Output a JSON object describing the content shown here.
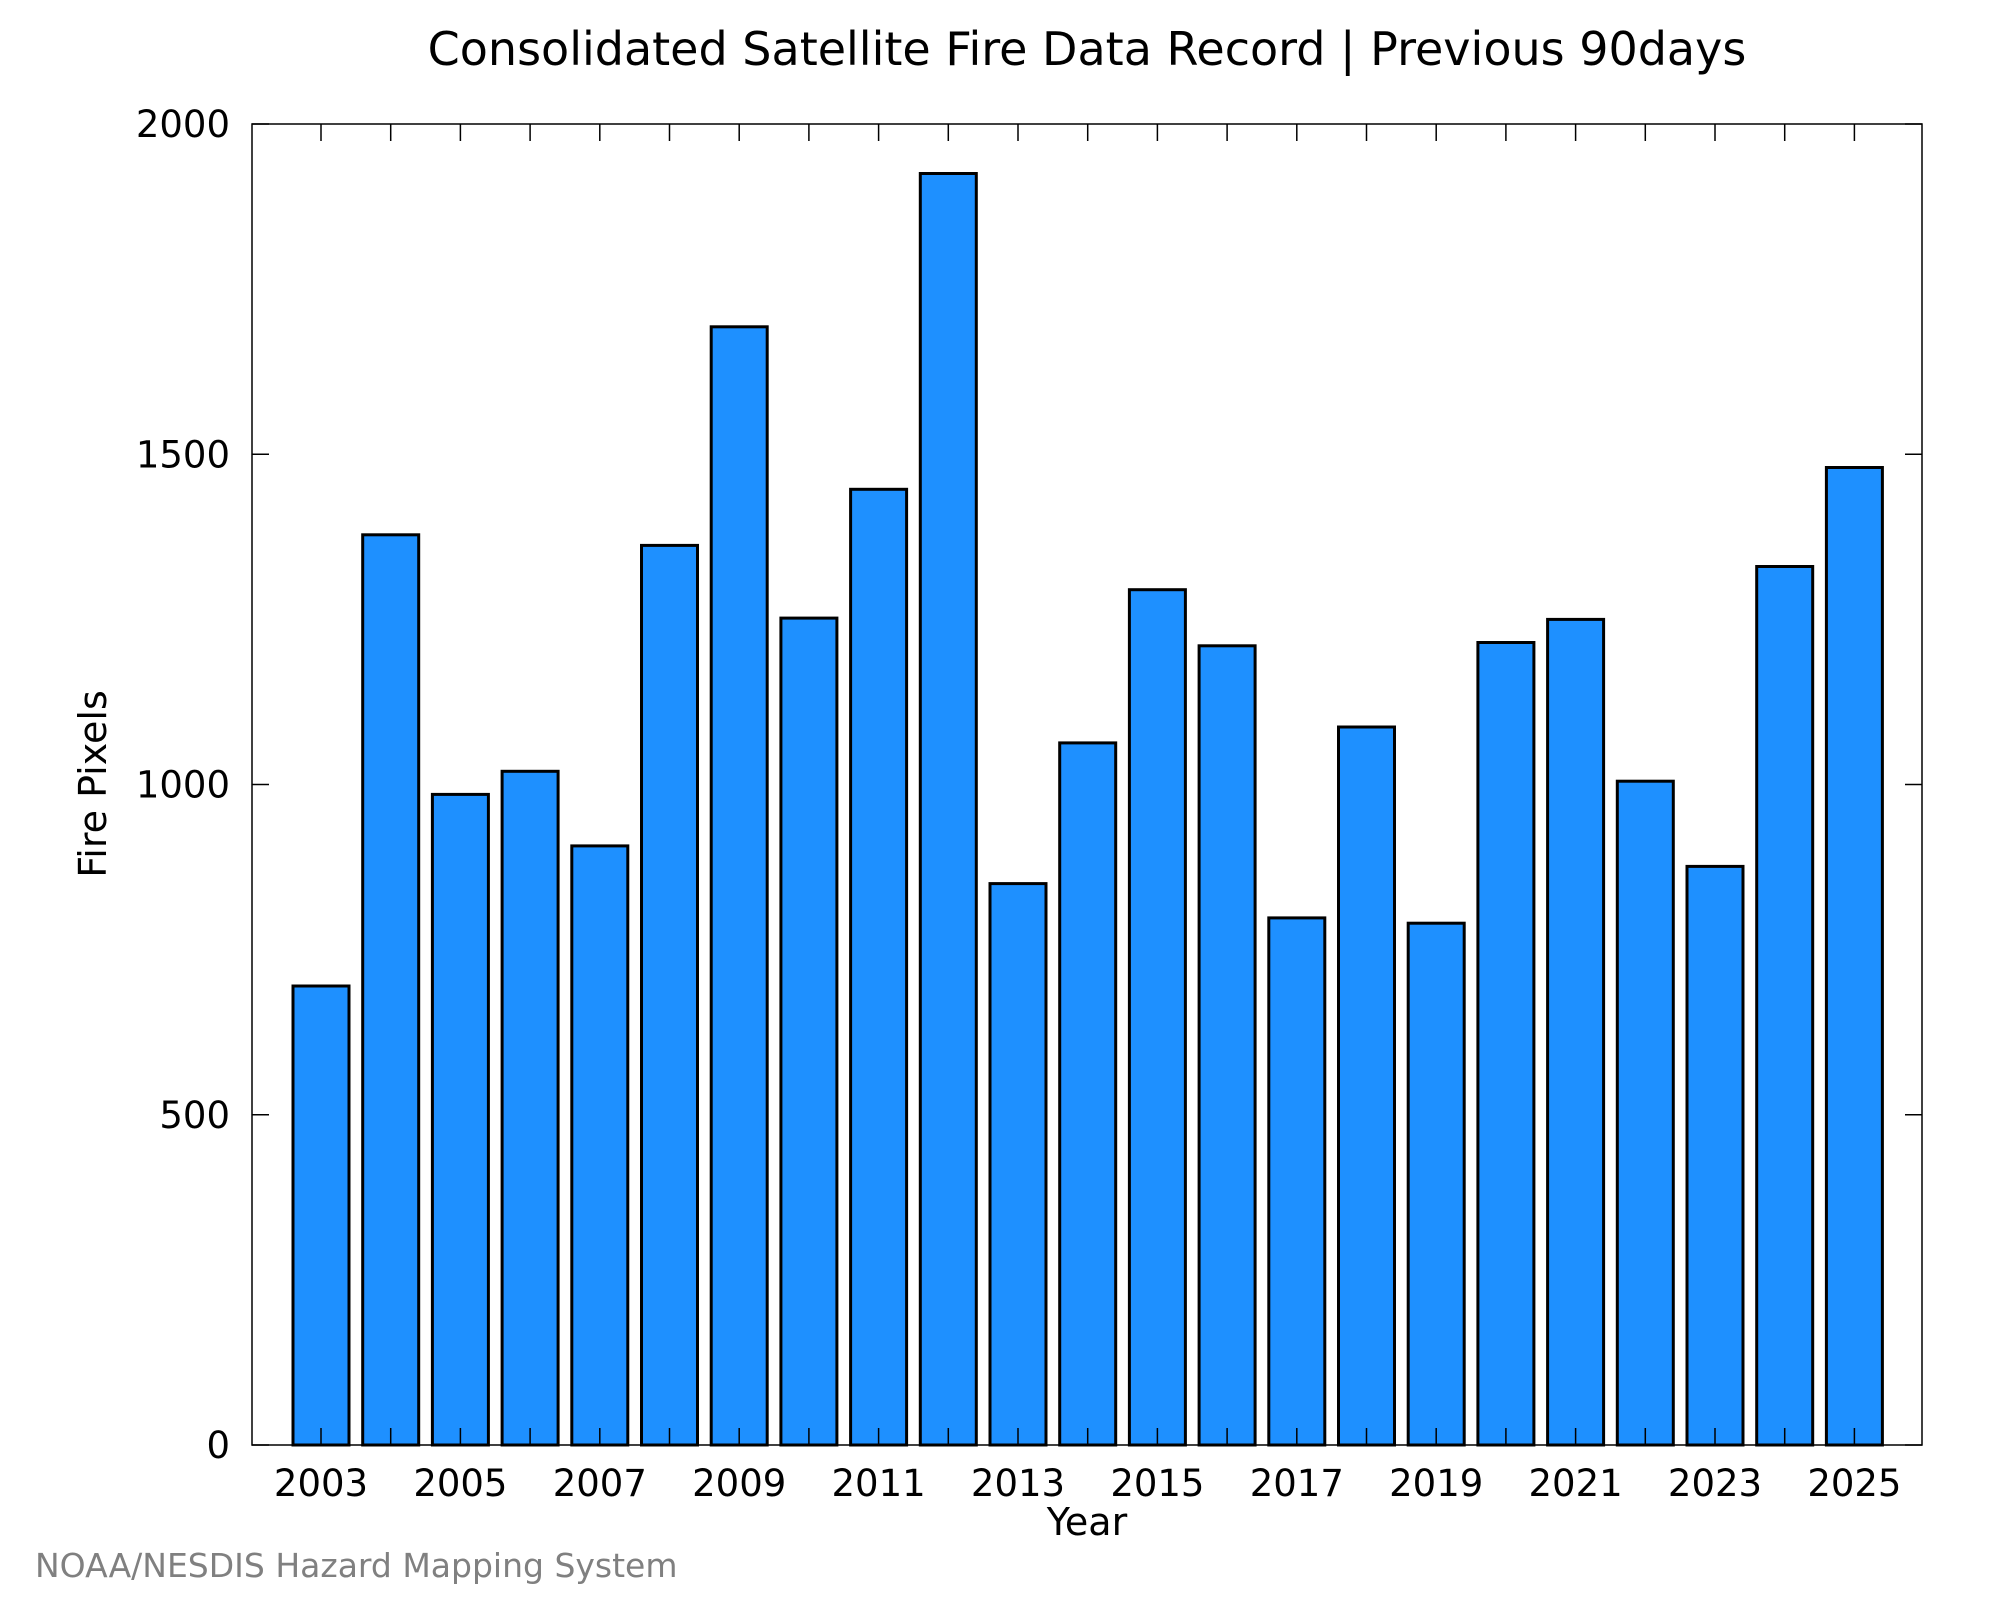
{
  "chart_data": {
    "type": "bar",
    "title": "Consolidated Satellite Fire Data Record | Previous 90days",
    "xlabel": "Year",
    "ylabel": "Fire Pixels",
    "categories": [
      "2003",
      "2004",
      "2005",
      "2006",
      "2007",
      "2008",
      "2009",
      "2010",
      "2011",
      "2012",
      "2013",
      "2014",
      "2015",
      "2016",
      "2017",
      "2018",
      "2019",
      "2020",
      "2021",
      "2022",
      "2023",
      "2024",
      "2025"
    ],
    "x_tick_labels": [
      "2003",
      "2005",
      "2007",
      "2009",
      "2011",
      "2013",
      "2015",
      "2017",
      "2019",
      "2021",
      "2023",
      "2025"
    ],
    "values": [
      695,
      1378,
      985,
      1020,
      907,
      1362,
      1693,
      1252,
      1447,
      1925,
      850,
      1063,
      1295,
      1210,
      798,
      1087,
      790,
      1215,
      1250,
      1005,
      876,
      1330,
      1480
    ],
    "ylim": [
      0,
      2000
    ],
    "y_ticks": [
      0,
      500,
      1000,
      1500,
      2000
    ],
    "bar_color": "#1e90ff",
    "grid": false,
    "legend": "none"
  },
  "credit": "NOAA/NESDIS Hazard Mapping System"
}
